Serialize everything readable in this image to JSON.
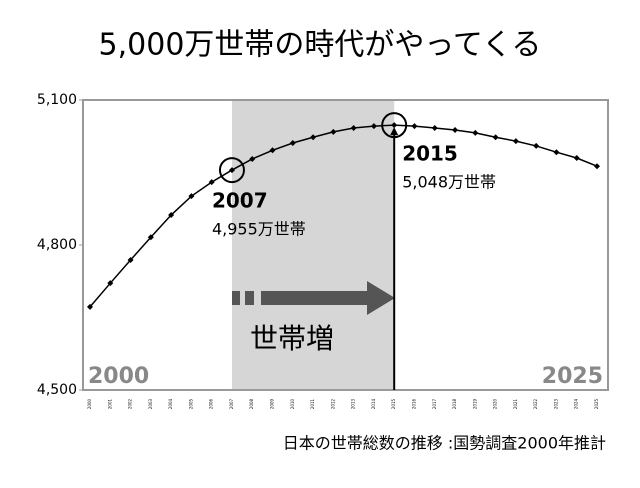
{
  "chart_data": {
    "type": "line",
    "title": "5,000万世帯の時代がやってくる",
    "x": [
      2000,
      2001,
      2002,
      2003,
      2004,
      2005,
      2006,
      2007,
      2008,
      2009,
      2010,
      2011,
      2012,
      2013,
      2014,
      2015,
      2016,
      2017,
      2018,
      2019,
      2020,
      2021,
      2022,
      2023,
      2024,
      2025
    ],
    "values": [
      4672,
      4721,
      4769,
      4816,
      4862,
      4901,
      4930,
      4955,
      4978,
      4996,
      5011,
      5023,
      5034,
      5042,
      5046,
      5048,
      5046,
      5042,
      5038,
      5032,
      5023,
      5015,
      5005,
      4992,
      4980,
      4963
    ],
    "color": "#000000",
    "ylim": [
      4500,
      5100
    ],
    "yticks": [
      {
        "value": 4500,
        "label": "4,500"
      },
      {
        "value": 4800,
        "label": "4,800"
      },
      {
        "value": 5100,
        "label": "5,100"
      }
    ],
    "callouts": [
      {
        "x": 2007,
        "label": "4,955万世帯"
      },
      {
        "x": 2015,
        "label": "5,048万世帯"
      }
    ],
    "arrow_label": "世帯増",
    "source": "日本の世帯総数の推移 :国勢調査2000年推計"
  }
}
